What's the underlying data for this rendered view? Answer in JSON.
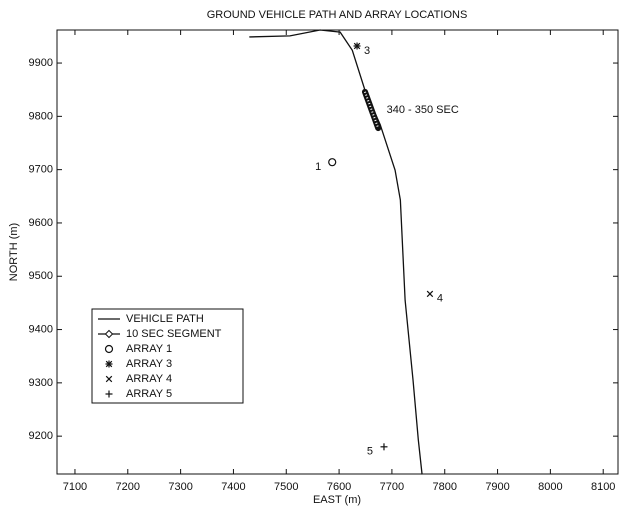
{
  "chart_data": {
    "type": "scatter",
    "title": "GROUND VEHICLE PATH AND ARRAY LOCATIONS",
    "x_label": "EAST (m)",
    "y_label": "NORTH (m)",
    "xlim": [
      7066,
      8128
    ],
    "ylim": [
      9129,
      9962
    ],
    "xticks": [
      7100,
      7200,
      7300,
      7400,
      7500,
      7600,
      7700,
      7800,
      7900,
      8000,
      8100
    ],
    "yticks": [
      9200,
      9300,
      9400,
      9500,
      9600,
      9700,
      9800,
      9900
    ],
    "legend": "lower left",
    "series": [
      {
        "name": "VEHICLE PATH",
        "color": "#111111",
        "line": true,
        "x": [
          7431,
          7507,
          7564,
          7602,
          7625,
          7649,
          7678,
          7706,
          7716,
          7725,
          7740,
          7750,
          7757
        ],
        "y": [
          9949,
          9951,
          9962,
          9958,
          9924,
          9849,
          9784,
          9699,
          9643,
          9455,
          9305,
          9193,
          9129
        ]
      },
      {
        "name": "10 SEC SEGMENT",
        "color": "#111111",
        "line": true,
        "marker": "diamond",
        "x": [
          7649,
          7674
        ],
        "y": [
          9846,
          9778
        ]
      },
      {
        "name": "ARRAY 1",
        "color": "#111111",
        "marker": "circle",
        "point_label": "1",
        "x": [
          7587
        ],
        "y": [
          9714
        ]
      },
      {
        "name": "ARRAY 3",
        "color": "#111111",
        "marker": "asterisk",
        "point_label": "3",
        "x": [
          7634
        ],
        "y": [
          9932
        ]
      },
      {
        "name": "ARRAY 4",
        "color": "#111111",
        "marker": "cross",
        "point_label": "4",
        "x": [
          7772
        ],
        "y": [
          9467
        ]
      },
      {
        "name": "ARRAY 5",
        "color": "#111111",
        "marker": "plus",
        "point_label": "5",
        "x": [
          7685
        ],
        "y": [
          9180
        ]
      }
    ],
    "annotations": [
      {
        "text": "340 - 350 SEC",
        "x": 7690,
        "y": 9812
      }
    ]
  }
}
